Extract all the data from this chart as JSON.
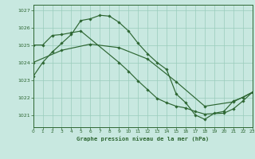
{
  "bg_color": "#c8e8e0",
  "grid_color": "#99ccbb",
  "line_color": "#2d6632",
  "title": "Graphe pression niveau de la mer (hPa)",
  "xlim": [
    0,
    23
  ],
  "ylim": [
    1020.3,
    1027.3
  ],
  "yticks": [
    1021,
    1022,
    1023,
    1024,
    1025,
    1026,
    1027
  ],
  "xticks": [
    0,
    1,
    2,
    3,
    4,
    5,
    6,
    7,
    8,
    9,
    10,
    11,
    12,
    13,
    14,
    15,
    16,
    17,
    18,
    19,
    20,
    21,
    22,
    23
  ],
  "s1_x": [
    0,
    1,
    2,
    3,
    4,
    5,
    6,
    7,
    8,
    9,
    10,
    11,
    12,
    13,
    14,
    15,
    16,
    17,
    18,
    19,
    20,
    21,
    22,
    23
  ],
  "s1_y": [
    1023.2,
    1024.0,
    1024.6,
    1025.1,
    1025.6,
    1026.4,
    1026.5,
    1026.7,
    1026.65,
    1026.3,
    1025.8,
    1025.1,
    1024.5,
    1024.0,
    1023.6,
    1022.2,
    1021.7,
    1021.0,
    1020.75,
    1021.1,
    1021.2,
    1021.8,
    1022.0,
    1022.3
  ],
  "s2_x": [
    0,
    1,
    2,
    3,
    4,
    5,
    9,
    10,
    11,
    12,
    13,
    14,
    15,
    16,
    17,
    18,
    20,
    21,
    22,
    23
  ],
  "s2_y": [
    1025.0,
    1025.0,
    1025.55,
    1025.6,
    1025.7,
    1025.8,
    1024.0,
    1023.5,
    1022.95,
    1022.45,
    1021.95,
    1021.7,
    1021.5,
    1021.4,
    1021.2,
    1021.05,
    1021.1,
    1021.35,
    1021.8,
    1022.3
  ],
  "s3_x": [
    0,
    3,
    6,
    9,
    12,
    15,
    18,
    21,
    23
  ],
  "s3_y": [
    1024.0,
    1024.7,
    1025.05,
    1024.85,
    1024.2,
    1022.9,
    1021.5,
    1021.75,
    1022.3
  ]
}
